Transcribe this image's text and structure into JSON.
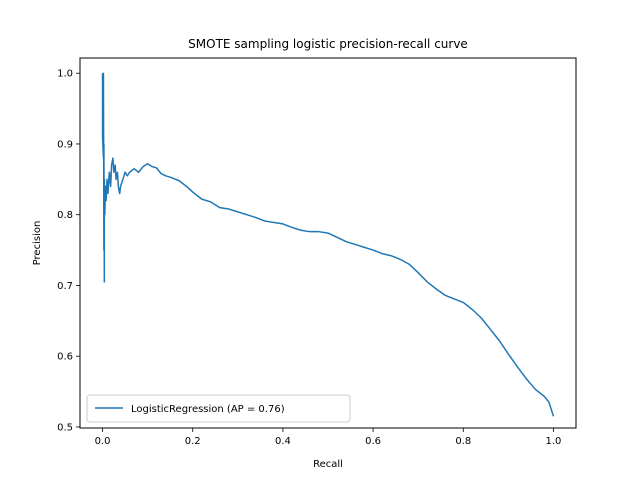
{
  "chart_data": {
    "type": "line",
    "title": "SMOTE sampling logistic precision-recall curve",
    "xlabel": "Recall",
    "ylabel": "Precision",
    "xlim": [
      -0.05,
      1.05
    ],
    "ylim": [
      0.4985,
      1.0215
    ],
    "x_ticks": [
      0.0,
      0.2,
      0.4,
      0.6,
      0.8,
      1.0
    ],
    "x_tick_labels": [
      "0.0",
      "0.2",
      "0.4",
      "0.6",
      "0.8",
      "1.0"
    ],
    "y_ticks": [
      0.5,
      0.6,
      0.7,
      0.8,
      0.9,
      1.0
    ],
    "y_tick_labels": [
      "0.5",
      "0.6",
      "0.7",
      "0.8",
      "0.9",
      "1.0"
    ],
    "grid": false,
    "legend": {
      "position": "lower-left",
      "entries": [
        "LogisticRegression (AP = 0.76)"
      ]
    },
    "series": [
      {
        "name": "LogisticRegression (AP = 0.76)",
        "color": "#1f77b4",
        "x": [
          0.0,
          0.0,
          0.002,
          0.002,
          0.003,
          0.003,
          0.004,
          0.004,
          0.005,
          0.006,
          0.007,
          0.008,
          0.01,
          0.012,
          0.015,
          0.018,
          0.02,
          0.023,
          0.025,
          0.028,
          0.03,
          0.033,
          0.035,
          0.038,
          0.04,
          0.045,
          0.05,
          0.055,
          0.06,
          0.07,
          0.08,
          0.09,
          0.1,
          0.11,
          0.12,
          0.13,
          0.14,
          0.15,
          0.17,
          0.19,
          0.2,
          0.22,
          0.24,
          0.26,
          0.28,
          0.3,
          0.32,
          0.34,
          0.36,
          0.38,
          0.4,
          0.42,
          0.44,
          0.46,
          0.48,
          0.5,
          0.52,
          0.54,
          0.56,
          0.58,
          0.6,
          0.62,
          0.64,
          0.66,
          0.68,
          0.7,
          0.72,
          0.74,
          0.76,
          0.78,
          0.8,
          0.82,
          0.84,
          0.86,
          0.88,
          0.9,
          0.92,
          0.94,
          0.96,
          0.98,
          0.99,
          0.995,
          1.0
        ],
        "y": [
          1.0,
          0.91,
          0.88,
          1.0,
          0.75,
          0.9,
          0.705,
          0.85,
          0.8,
          0.83,
          0.84,
          0.82,
          0.85,
          0.83,
          0.86,
          0.84,
          0.87,
          0.88,
          0.86,
          0.87,
          0.85,
          0.86,
          0.84,
          0.83,
          0.84,
          0.85,
          0.86,
          0.855,
          0.86,
          0.865,
          0.86,
          0.868,
          0.872,
          0.868,
          0.866,
          0.858,
          0.855,
          0.853,
          0.848,
          0.838,
          0.832,
          0.822,
          0.818,
          0.81,
          0.808,
          0.804,
          0.8,
          0.796,
          0.791,
          0.789,
          0.787,
          0.782,
          0.778,
          0.776,
          0.776,
          0.774,
          0.768,
          0.762,
          0.758,
          0.754,
          0.75,
          0.745,
          0.742,
          0.737,
          0.73,
          0.718,
          0.705,
          0.695,
          0.686,
          0.681,
          0.676,
          0.666,
          0.654,
          0.638,
          0.622,
          0.603,
          0.585,
          0.568,
          0.553,
          0.543,
          0.535,
          0.525,
          0.515
        ]
      }
    ]
  }
}
